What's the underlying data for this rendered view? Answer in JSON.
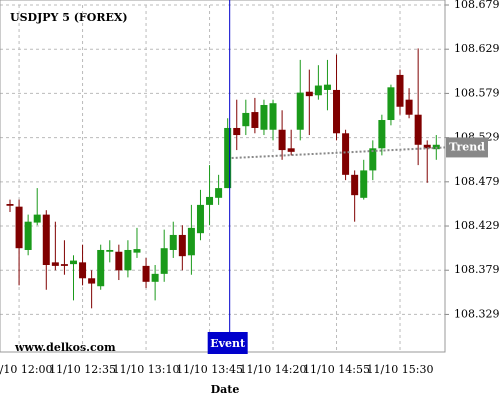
{
  "chart_data": {
    "type": "candlestick",
    "title": "USDJPY 5 (FOREX)",
    "watermark": "www.delkos.com",
    "x_label": "Date",
    "categories": [
      null,
      "11/10 12:00",
      null,
      null,
      null,
      null,
      null,
      null,
      "11/10 12:35",
      null,
      null,
      null,
      null,
      null,
      null,
      "11/10 13:10",
      null,
      null,
      null,
      null,
      null,
      null,
      "11/10 13:45",
      null,
      null,
      null,
      null,
      null,
      null,
      "11/10 14:20",
      null,
      null,
      null,
      null,
      null,
      null,
      "11/10 14:55",
      null,
      null,
      null,
      null,
      null,
      null,
      "11/10 15:30",
      null,
      null,
      null,
      null
    ],
    "open": [
      108.454,
      108.451,
      108.402,
      108.433,
      108.442,
      108.388,
      108.386,
      108.386,
      108.388,
      108.37,
      108.361,
      108.4,
      108.4,
      108.379,
      108.399,
      108.384,
      108.366,
      108.375,
      108.402,
      108.419,
      108.396,
      108.421,
      108.453,
      108.461,
      108.472,
      108.54,
      108.542,
      108.558,
      108.538,
      108.538,
      108.538,
      108.517,
      108.538,
      108.581,
      108.577,
      108.583,
      108.583,
      108.534,
      108.487,
      108.461,
      108.492,
      108.517,
      108.549,
      108.6,
      108.572,
      108.555,
      108.521,
      108.516
    ],
    "high": [
      108.459,
      108.459,
      108.442,
      108.472,
      108.447,
      108.434,
      108.413,
      108.396,
      108.408,
      108.379,
      108.408,
      108.413,
      108.408,
      108.413,
      108.427,
      108.393,
      108.385,
      108.425,
      108.434,
      108.43,
      108.453,
      108.47,
      108.498,
      108.487,
      108.551,
      108.572,
      108.572,
      108.574,
      108.572,
      108.572,
      108.56,
      108.538,
      108.617,
      108.606,
      108.611,
      108.617,
      108.623,
      108.538,
      108.492,
      108.504,
      108.526,
      108.555,
      108.589,
      108.606,
      108.585,
      108.63,
      108.526,
      108.532
    ],
    "low": [
      108.445,
      108.362,
      108.396,
      108.43,
      108.357,
      108.379,
      108.374,
      108.345,
      108.362,
      108.336,
      108.357,
      108.388,
      108.368,
      108.371,
      108.393,
      108.359,
      108.345,
      108.366,
      108.393,
      108.379,
      108.374,
      108.413,
      108.43,
      108.453,
      108.472,
      108.515,
      108.532,
      108.534,
      108.532,
      108.526,
      108.504,
      108.509,
      108.526,
      108.532,
      108.572,
      108.56,
      108.526,
      108.481,
      108.434,
      108.459,
      108.481,
      108.509,
      108.543,
      108.555,
      108.551,
      108.498,
      108.478,
      108.504
    ],
    "close": [
      108.452,
      108.404,
      108.434,
      108.442,
      108.385,
      108.384,
      108.384,
      108.39,
      108.37,
      108.364,
      108.402,
      108.402,
      108.379,
      108.402,
      108.403,
      108.366,
      108.375,
      108.404,
      108.419,
      108.395,
      108.427,
      108.453,
      108.462,
      108.472,
      108.54,
      108.532,
      108.557,
      108.54,
      108.566,
      108.568,
      108.515,
      108.513,
      108.58,
      108.576,
      108.588,
      108.589,
      108.534,
      108.487,
      108.464,
      108.492,
      108.517,
      108.549,
      108.586,
      108.564,
      108.555,
      108.521,
      108.517,
      108.521
    ],
    "up_color": "#1a9a1a",
    "down_color": "#800000",
    "ylim": [
      108.2866,
      108.6791
    ],
    "yticks": [
      108.3291,
      108.3791,
      108.4291,
      108.4791,
      108.5291,
      108.5791,
      108.6291,
      108.6791
    ],
    "grid": true,
    "event": {
      "label": "Event",
      "color": "#0000cc"
    },
    "trend": {
      "label": "Trend",
      "start": 108.506,
      "end": 108.518,
      "color": "#888888"
    }
  }
}
